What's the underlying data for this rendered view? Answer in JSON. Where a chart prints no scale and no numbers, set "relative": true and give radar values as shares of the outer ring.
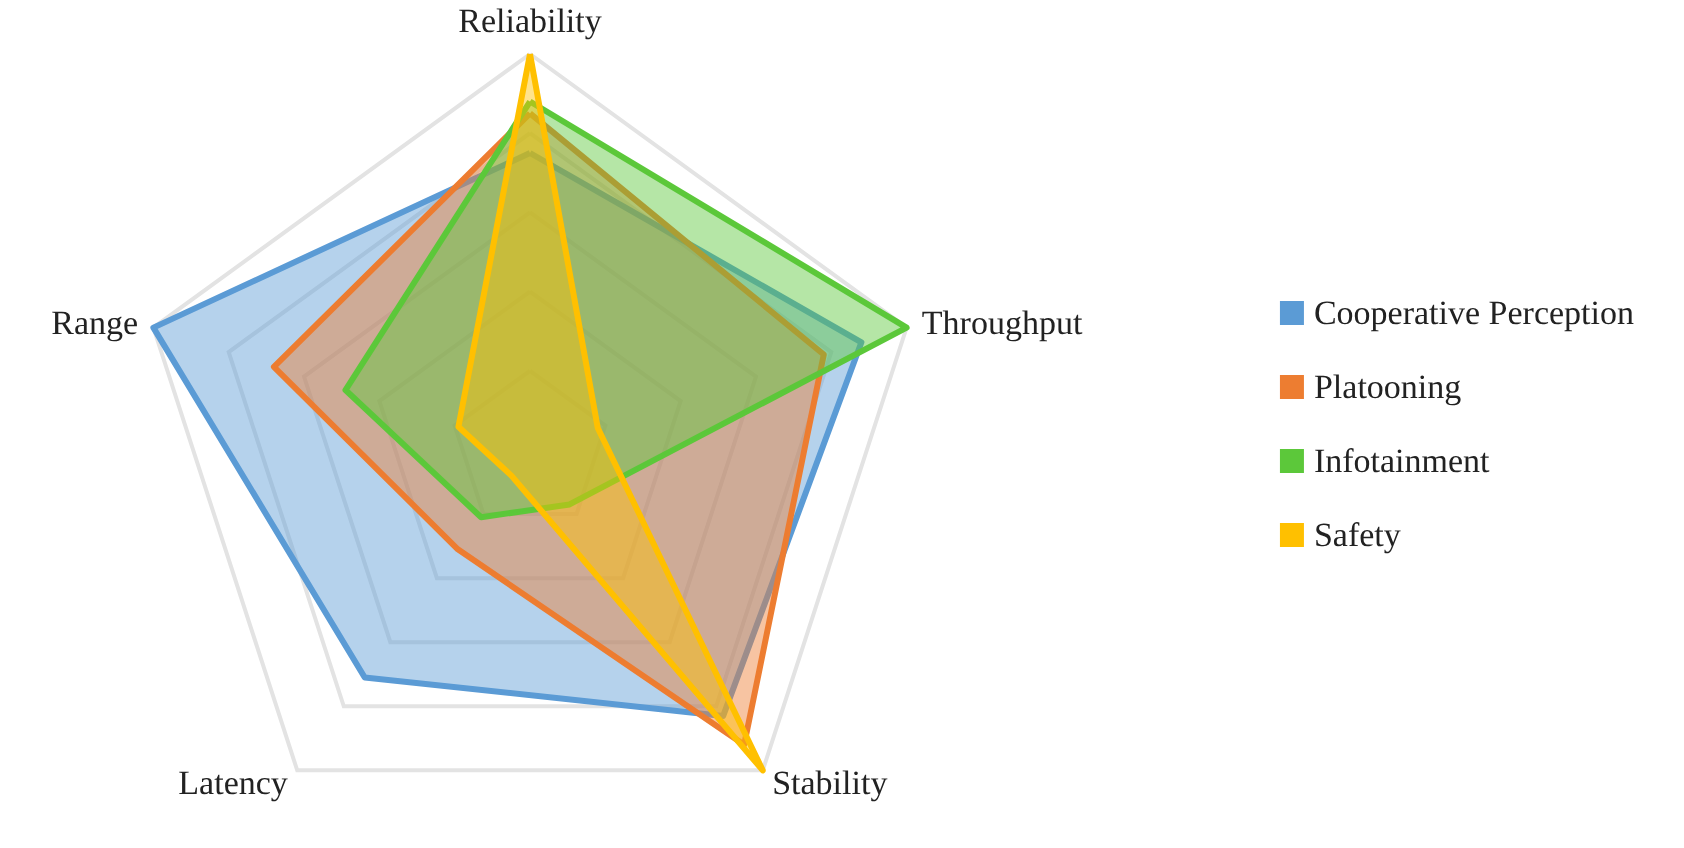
{
  "chart_data": {
    "type": "radar",
    "relative": true,
    "categories": [
      "Reliability",
      "Throughput",
      "Stability",
      "Latency",
      "Range"
    ],
    "series": [
      {
        "name": "Cooperative Perception",
        "color": "#5b9bd5",
        "values": [
          0.75,
          0.88,
          0.83,
          0.71,
          1.0
        ]
      },
      {
        "name": "Platooning",
        "color": "#ed7d31",
        "values": [
          0.85,
          0.78,
          0.92,
          0.31,
          0.68
        ]
      },
      {
        "name": "Infotainment",
        "color": "#5cc83a",
        "values": [
          0.88,
          1.0,
          0.17,
          0.21,
          0.49
        ]
      },
      {
        "name": "Safety",
        "color": "#ffc000",
        "values": [
          1.0,
          0.18,
          1.0,
          0.08,
          0.19
        ]
      }
    ],
    "grid": true,
    "legend": "right",
    "marker": "none",
    "line_style": "solid"
  }
}
